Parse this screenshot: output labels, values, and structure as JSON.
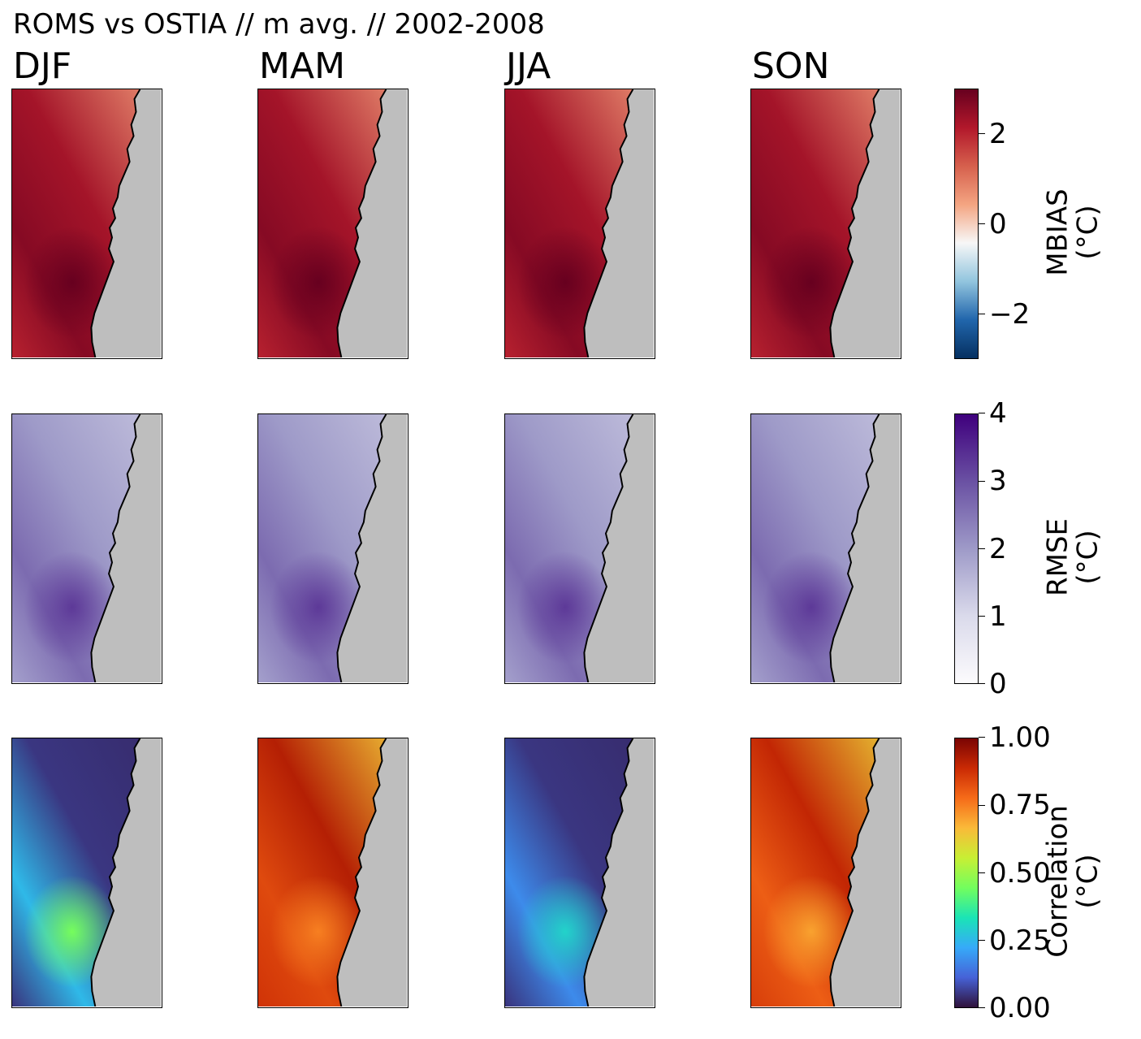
{
  "figure": {
    "title": "ROMS vs OSTIA // m avg. // 2002-2008",
    "seasons": [
      "DJF",
      "MAM",
      "JJA",
      "SON"
    ]
  },
  "chart_data": [
    {
      "type": "heatmap",
      "metric": "MBIAS",
      "colorbar_label": [
        "MBIAS",
        "(°C)"
      ],
      "colormap": "RdBu_r",
      "vmin": -3,
      "vmax": 3,
      "ticks": [
        -2,
        0,
        2
      ],
      "tick_labels": [
        "−2",
        "0",
        "2"
      ],
      "colors": [
        "#053061",
        "#2166ac",
        "#92c5de",
        "#f7f7f7",
        "#f4a582",
        "#d6604d",
        "#b2182b",
        "#67001f"
      ],
      "panels": [
        {
          "season": "DJF",
          "offshore_value": 2.3,
          "eddy_value": 3.0
        },
        {
          "season": "MAM",
          "offshore_value": 2.3,
          "eddy_value": 3.0
        },
        {
          "season": "JJA",
          "offshore_value": 2.3,
          "eddy_value": 3.0
        },
        {
          "season": "SON",
          "offshore_value": 2.3,
          "eddy_value": 3.0
        }
      ]
    },
    {
      "type": "heatmap",
      "metric": "RMSE",
      "colorbar_label": [
        "RMSE",
        "(°C)"
      ],
      "colormap": "Purples",
      "vmin": 0,
      "vmax": 4,
      "ticks": [
        0,
        1,
        2,
        3,
        4
      ],
      "tick_labels": [
        "0",
        "1",
        "2",
        "3",
        "4"
      ],
      "colors": [
        "#fcfbfd",
        "#dadaeb",
        "#9e9ac8",
        "#6a51a3",
        "#3f007d"
      ],
      "panels": [
        {
          "season": "DJF",
          "offshore_value": 2.0,
          "eddy_value": 3.3
        },
        {
          "season": "MAM",
          "offshore_value": 2.0,
          "eddy_value": 3.3
        },
        {
          "season": "JJA",
          "offshore_value": 2.0,
          "eddy_value": 3.3
        },
        {
          "season": "SON",
          "offshore_value": 2.0,
          "eddy_value": 3.3
        }
      ]
    },
    {
      "type": "heatmap",
      "metric": "Correlation",
      "colorbar_label": [
        "Correlation",
        "(°C)"
      ],
      "colormap": "turbo",
      "vmin": 0,
      "vmax": 1,
      "ticks": [
        0,
        0.25,
        0.5,
        0.75,
        1
      ],
      "tick_labels": [
        "0.00",
        "0.25",
        "0.50",
        "0.75",
        "1.00"
      ],
      "colors": [
        "#30123b",
        "#4662d7",
        "#36aaf9",
        "#1ae4b6",
        "#72fe5e",
        "#c8ef34",
        "#faba39",
        "#f66b19",
        "#ca2a04",
        "#7a0403"
      ],
      "panels": [
        {
          "season": "DJF",
          "offshore_value": 0.05,
          "eddy_value": 0.45
        },
        {
          "season": "MAM",
          "offshore_value": 0.92,
          "eddy_value": 0.75
        },
        {
          "season": "JJA",
          "offshore_value": 0.05,
          "eddy_value": 0.3
        },
        {
          "season": "SON",
          "offshore_value": 0.9,
          "eddy_value": 0.7
        }
      ]
    }
  ]
}
